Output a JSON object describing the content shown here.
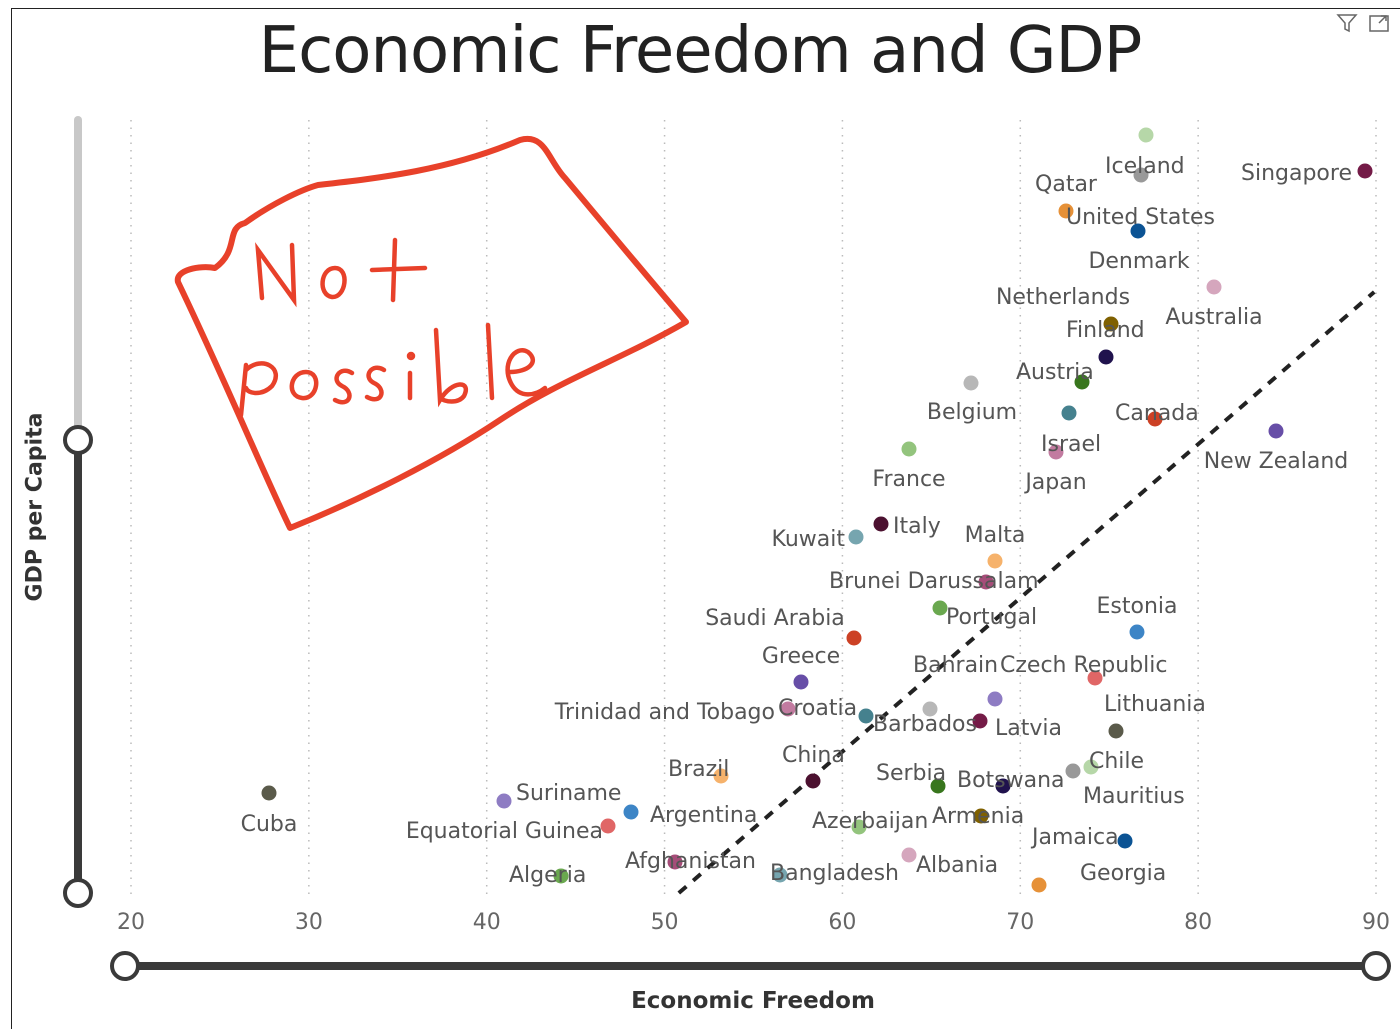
{
  "title": "Economic Freedom and GDP",
  "toolbar": {
    "filter_icon": "filter-icon",
    "focus_icon": "focus-mode-icon"
  },
  "axes": {
    "x_label": "Economic Freedom",
    "y_label": "GDP per Capita"
  },
  "annotation": {
    "line1": "Not",
    "line2": "possible",
    "color": "#e8412a"
  },
  "colors": {
    "trendline": "#222222",
    "slider": "#3a3a3a",
    "slider_light": "#c8c8c8"
  },
  "chart_data": {
    "type": "scatter",
    "title": "Economic Freedom and GDP",
    "xlabel": "Economic Freedom",
    "ylabel": "GDP per Capita",
    "xlim": [
      20,
      90
    ],
    "x_ticks": [
      "20",
      "30",
      "40",
      "50",
      "60",
      "70",
      "80",
      "90"
    ],
    "grid": "vertical-dotted",
    "trendline": "dashed",
    "labeled_points": [
      {
        "name": "Cuba",
        "x": 27.8,
        "gdp": "low"
      },
      {
        "name": "Suriname",
        "x": 41.0,
        "gdp": "low"
      },
      {
        "name": "Equatorial Guinea",
        "x": 46.8,
        "gdp": "low"
      },
      {
        "name": "Algeria",
        "x": 44.0,
        "gdp": "low"
      },
      {
        "name": "Argentina",
        "x": 48.0,
        "gdp": "low"
      },
      {
        "name": "Afghanistan",
        "x": 50.8,
        "gdp": "low"
      },
      {
        "name": "Brazil",
        "x": 53.0,
        "gdp": "low"
      },
      {
        "name": "Bangladesh",
        "x": 56.0,
        "gdp": "low"
      },
      {
        "name": "China",
        "x": 58.5,
        "gdp": "low"
      },
      {
        "name": "Azerbaijan",
        "x": 61.5,
        "gdp": "low"
      },
      {
        "name": "Trinidad and Tobago",
        "x": 57.0,
        "gdp": "mid-low"
      },
      {
        "name": "Croatia",
        "x": 61.2,
        "gdp": "mid-low"
      },
      {
        "name": "Barbados",
        "x": 64.8,
        "gdp": "mid-low"
      },
      {
        "name": "Greece",
        "x": 57.8,
        "gdp": "mid-low"
      },
      {
        "name": "Saudi Arabia",
        "x": 60.6,
        "gdp": "mid"
      },
      {
        "name": "Serbia",
        "x": 65.2,
        "gdp": "low"
      },
      {
        "name": "Botswana",
        "x": 69.0,
        "gdp": "low"
      },
      {
        "name": "Armenia",
        "x": 68.5,
        "gdp": "low"
      },
      {
        "name": "Albania",
        "x": 65.5,
        "gdp": "low"
      },
      {
        "name": "Jamaica",
        "x": 75.8,
        "gdp": "low"
      },
      {
        "name": "Georgia",
        "x": 71.0,
        "gdp": "low"
      },
      {
        "name": "Mauritius",
        "x": 74.0,
        "gdp": "low"
      },
      {
        "name": "Chile",
        "x": 74.2,
        "gdp": "low"
      },
      {
        "name": "Latvia",
        "x": 68.5,
        "gdp": "mid-low"
      },
      {
        "name": "Lithuania",
        "x": 75.5,
        "gdp": "mid-low"
      },
      {
        "name": "Bahrain",
        "x": 68.5,
        "gdp": "mid-low"
      },
      {
        "name": "Czech Republic",
        "x": 74.0,
        "gdp": "mid-low"
      },
      {
        "name": "Portugal",
        "x": 66.0,
        "gdp": "mid"
      },
      {
        "name": "Estonia",
        "x": 76.5,
        "gdp": "mid"
      },
      {
        "name": "Brunei Darussalam",
        "x": 67.8,
        "gdp": "mid"
      },
      {
        "name": "Malta",
        "x": 68.5,
        "gdp": "mid"
      },
      {
        "name": "Kuwait",
        "x": 60.8,
        "gdp": "mid"
      },
      {
        "name": "Italy",
        "x": 62.2,
        "gdp": "mid"
      },
      {
        "name": "France",
        "x": 63.8,
        "gdp": "high"
      },
      {
        "name": "Japan",
        "x": 72.2,
        "gdp": "high"
      },
      {
        "name": "Israel",
        "x": 72.8,
        "gdp": "high"
      },
      {
        "name": "Belgium",
        "x": 67.2,
        "gdp": "high"
      },
      {
        "name": "New Zealand",
        "x": 84.4,
        "gdp": "high"
      },
      {
        "name": "Canada",
        "x": 77.7,
        "gdp": "high"
      },
      {
        "name": "Austria",
        "x": 73.4,
        "gdp": "high"
      },
      {
        "name": "Finland",
        "x": 74.8,
        "gdp": "high"
      },
      {
        "name": "Netherlands",
        "x": 76.7,
        "gdp": "high"
      },
      {
        "name": "Australia",
        "x": 80.8,
        "gdp": "high"
      },
      {
        "name": "Denmark",
        "x": 76.6,
        "gdp": "very high"
      },
      {
        "name": "United States",
        "x": 76.6,
        "gdp": "very high"
      },
      {
        "name": "Qatar",
        "x": 72.6,
        "gdp": "very high"
      },
      {
        "name": "Iceland",
        "x": 76.9,
        "gdp": "very high"
      },
      {
        "name": "Singapore",
        "x": 89.4,
        "gdp": "very high"
      }
    ]
  }
}
